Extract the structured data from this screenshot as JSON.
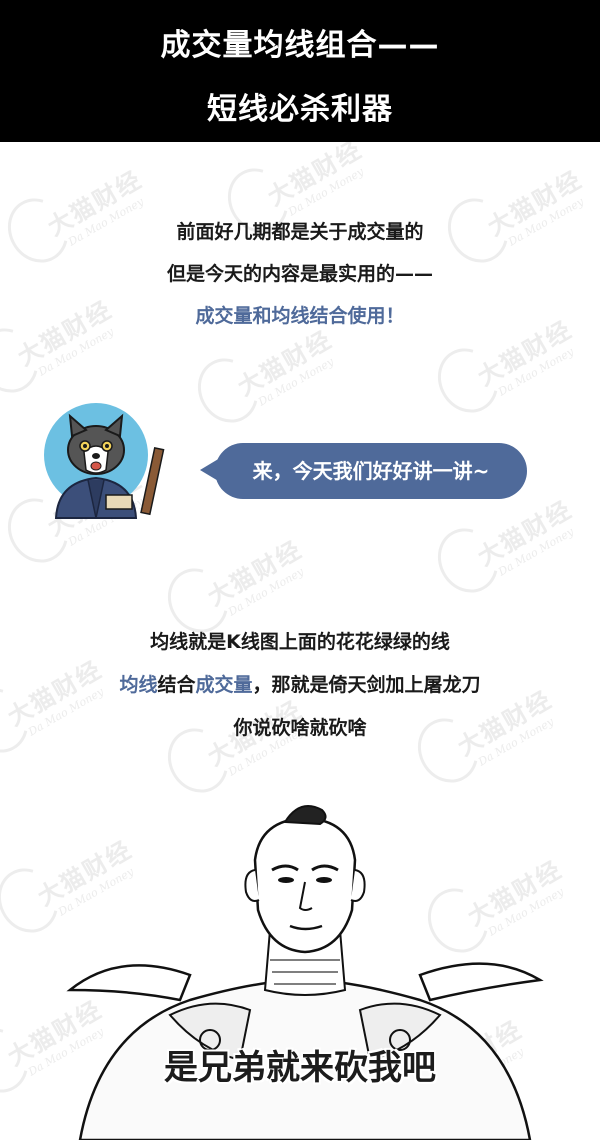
{
  "header": {
    "line1": "成交量均线组合——",
    "line2": "短线必杀利器"
  },
  "watermark": {
    "cn": "大猫财经",
    "en": "Da Mao Money"
  },
  "intro": {
    "line1": "前面好几期都是关于成交量的",
    "line2": "但是今天的内容是最实用的——",
    "line3": "成交量和均线结合使用！"
  },
  "bubble": {
    "text": "来，今天我们好好讲一讲~"
  },
  "explain": {
    "line1": "均线就是K线图上面的花花绿绿的线",
    "line2_part1": "均线",
    "line2_part2": "结合",
    "line2_part3": "成交量",
    "line2_part4": "，那就是倚天剑加上屠龙刀",
    "line3": "你说砍啥就砍啥"
  },
  "caption": {
    "text": "是兄弟就来砍我吧"
  },
  "colors": {
    "accent": "#4f6a9a",
    "header_bg": "#000000"
  },
  "icons": {
    "avatar": "cat-teacher-icon",
    "illustration": "warrior-illustration"
  }
}
